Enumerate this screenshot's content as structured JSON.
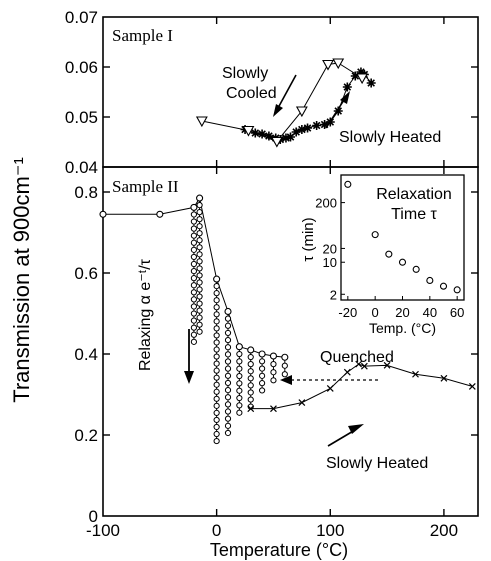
{
  "figure": {
    "y_axis_label": "Transmission at 900cm⁻¹",
    "x_axis_label": "Temperature (°C)"
  },
  "chart_data": [
    {
      "panel": "Sample I",
      "type": "line",
      "title": "Sample I",
      "ylim": [
        0.04,
        0.07
      ],
      "yticks": [
        "0.04",
        "0.05",
        "0.06",
        "0.07"
      ],
      "xlim": [
        -100,
        230
      ],
      "grid": false,
      "annotations": [
        "Slowly\nCooled",
        "Slowly Heated"
      ],
      "series": [
        {
          "name": "Slowly Cooled",
          "marker": "triangle-down",
          "x": [
            -13,
            28,
            53,
            75,
            98,
            107,
            128
          ],
          "y": [
            0.0492,
            0.0473,
            0.0451,
            0.0512,
            0.0605,
            0.0608,
            0.0578
          ]
        },
        {
          "name": "Slowly Heated",
          "marker": "asterisk",
          "x": [
            25,
            34,
            40,
            46,
            52,
            56,
            61,
            65,
            70,
            75,
            80,
            88,
            95,
            100,
            107,
            115,
            122,
            127,
            130,
            136
          ],
          "y": [
            0.0475,
            0.0468,
            0.0466,
            0.0462,
            0.0458,
            0.0455,
            0.0458,
            0.046,
            0.047,
            0.0475,
            0.0478,
            0.0483,
            0.0485,
            0.049,
            0.0512,
            0.056,
            0.0582,
            0.059,
            0.0585,
            0.0568
          ]
        }
      ]
    },
    {
      "panel": "Sample II",
      "type": "line",
      "title": "Sample II",
      "xlim": [
        -100,
        230
      ],
      "ylim": [
        0,
        0.85
      ],
      "xticks": [
        "-100",
        "0",
        "100",
        "200"
      ],
      "yticks": [
        "0",
        "0.2",
        "0.4",
        "0.6",
        "0.8"
      ],
      "grid": false,
      "annotations": [
        "Relaxing α e⁻ᵗ/τ",
        "Quenched",
        "Slowly Heated"
      ],
      "series": [
        {
          "name": "Quenched (relaxing)",
          "marker": "circle",
          "x": [
            -100,
            -50,
            -20,
            -15,
            0,
            10,
            20,
            30,
            40,
            50,
            60
          ],
          "y": [
            0.745,
            0.745,
            0.762,
            0.785,
            0.585,
            0.505,
            0.418,
            0.41,
            0.4,
            0.395,
            0.392
          ],
          "relaxation_columns": [
            {
              "x": -20,
              "top": 0.762,
              "bottom": 0.43
            },
            {
              "x": -15,
              "top": 0.785,
              "bottom": 0.455
            },
            {
              "x": 0,
              "top": 0.585,
              "bottom": 0.185
            },
            {
              "x": 10,
              "top": 0.505,
              "bottom": 0.205
            },
            {
              "x": 20,
              "top": 0.418,
              "bottom": 0.255
            },
            {
              "x": 30,
              "top": 0.41,
              "bottom": 0.27
            },
            {
              "x": 40,
              "top": 0.4,
              "bottom": 0.31
            },
            {
              "x": 50,
              "top": 0.395,
              "bottom": 0.335
            },
            {
              "x": 60,
              "top": 0.392,
              "bottom": 0.35
            }
          ]
        },
        {
          "name": "Slowly Heated",
          "marker": "x",
          "x": [
            30,
            50,
            75,
            100,
            115,
            125,
            130,
            150,
            175,
            200,
            225
          ],
          "y": [
            0.265,
            0.265,
            0.28,
            0.315,
            0.355,
            0.375,
            0.37,
            0.372,
            0.35,
            0.34,
            0.32
          ]
        }
      ]
    },
    {
      "panel": "inset",
      "type": "scatter",
      "title": "Relaxation Time τ",
      "xlabel": "Temp. (°C)",
      "ylabel": "τ (min)",
      "yscale": "log",
      "xlim": [
        -25,
        65
      ],
      "ylim": [
        1.5,
        800
      ],
      "xticks": [
        "-20",
        "0",
        "20",
        "40",
        "60"
      ],
      "yticks": [
        "2",
        "10",
        "20",
        "200"
      ],
      "series": [
        {
          "name": "",
          "marker": "circle",
          "x": [
            -20,
            0,
            10,
            20,
            30,
            40,
            50,
            60
          ],
          "y": [
            500,
            40,
            15,
            10,
            7,
            4,
            3,
            2.5
          ]
        }
      ]
    }
  ]
}
